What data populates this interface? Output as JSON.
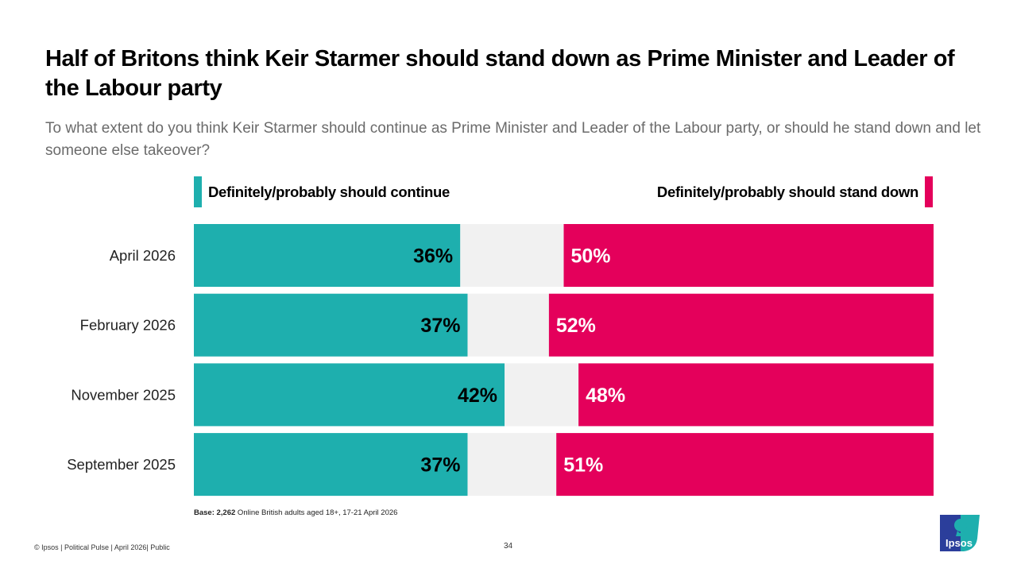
{
  "chart_data": {
    "type": "bar",
    "orientation": "horizontal",
    "stacked": "diverging-ends",
    "title": "Half of Britons think Keir Starmer should stand down as Prime Minister and Leader of the Labour party",
    "subtitle": "To what extent do you think Keir Starmer should continue as Prime Minister and Leader of the Labour party, or should he stand down and let someone else takeover?",
    "categories": [
      "April 2026",
      "February 2026",
      "November 2025",
      "September 2025"
    ],
    "series": [
      {
        "name": "Definitely/probably should continue",
        "color": "#1EAFAE",
        "label_color": "#000000",
        "values": [
          36,
          37,
          42,
          37
        ],
        "labels": [
          "36%",
          "37%",
          "42%",
          "37%"
        ],
        "anchor": "left"
      },
      {
        "name": "Definitely/probably should stand down",
        "color": "#E4005B",
        "label_color": "#FFFFFF",
        "values": [
          50,
          52,
          48,
          51
        ],
        "labels": [
          "50%",
          "52%",
          "48%",
          "51%"
        ],
        "anchor": "right"
      }
    ],
    "remainder_color": "#F1F1F1",
    "xlim": [
      0,
      100
    ],
    "unit": "%",
    "grid": false,
    "legend_position": "top"
  },
  "header": {
    "title": "Half of Britons think Keir Starmer should stand down as Prime Minister and Leader of the Labour party",
    "subtitle": "To what extent do you think Keir Starmer should continue as Prime Minister and Leader of the Labour party, or should he stand down and let someone else takeover?"
  },
  "legend": {
    "left": "Definitely/probably should continue",
    "right": "Definitely/probably should stand down"
  },
  "base_note": {
    "label": "Base: 2,262",
    "text": " Online British adults aged 18+,  17-21 April 2026"
  },
  "footer": {
    "text": "© Ipsos | Political Pulse | April 2026| Public",
    "page_number": "34",
    "logo_text": "Ipsos"
  }
}
